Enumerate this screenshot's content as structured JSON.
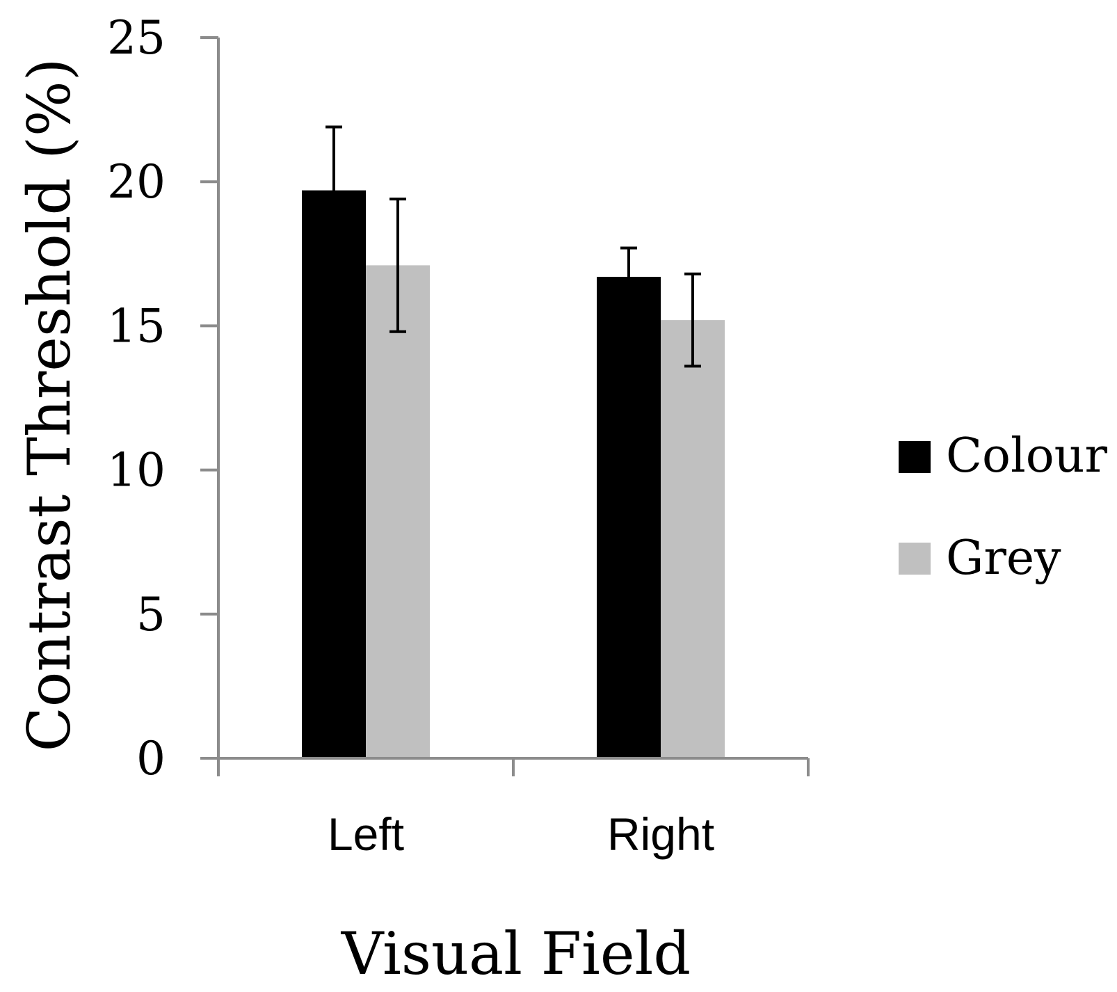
{
  "chart_data": {
    "type": "bar",
    "xlabel": "Visual Field",
    "ylabel": "Contrast Threshold (%)",
    "categories": [
      "Left",
      "Right"
    ],
    "series": [
      {
        "name": "Colour",
        "color": "#000000",
        "values": [
          19.7,
          16.7
        ],
        "error": [
          2.2,
          1.0
        ]
      },
      {
        "name": "Grey",
        "color": "#c0c0c0",
        "values": [
          17.1,
          15.2
        ],
        "error": [
          2.3,
          1.6
        ]
      }
    ],
    "ylim": [
      0,
      25
    ],
    "yticks": [
      0,
      5,
      10,
      15,
      20,
      25
    ],
    "grid": false,
    "legend_position": "right"
  }
}
